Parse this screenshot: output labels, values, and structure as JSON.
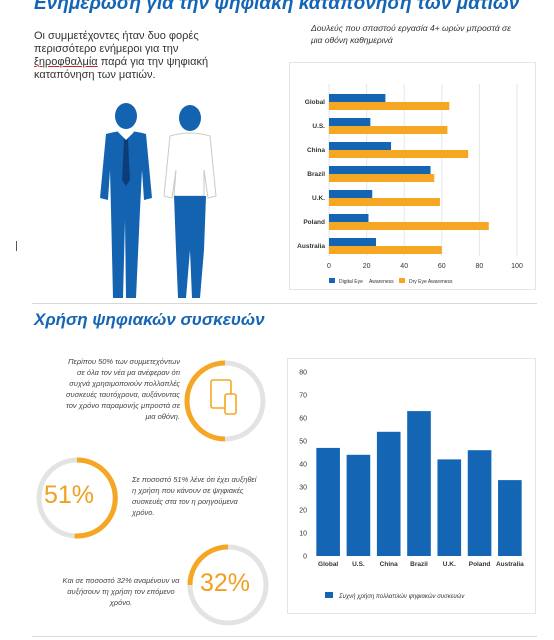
{
  "section1": {
    "title": "Ενημέρωση για την ψηφιακή καταπόνηση των ματιών",
    "intro_before": "Οι συμμετέχοντες ήταν δυο φορές περισσότερο ενήμεροι για την ",
    "intro_typo": "ξηροφθαλμία",
    "intro_after": " παρά για την ψηφιακή καταπόνηση των ματιών.",
    "chart_title": "Δουλεύς που σπαστού εργασία 4+ ωρών μπροστά σε μια οθόνη καθημερινά"
  },
  "section2": {
    "title": "Χρήση ψηφιακών συσκευών",
    "stat1_text": "Περίπου 50% των συμμετεχόντων σε όλα τον νέα μα ανέφεραν ότι συχνά χρησιμοποιούν πολλαπλές συσκευές ταυτόχρονα, αυξάνοντας τον χρόνο παραμονής μπροστά σε μια οθόνη.",
    "stat2_value": "51%",
    "stat2_text": "Σε ποσοστό 51% λένε ότι έχει αυξηθεί η χρήση που κάνουν σε ψηφιακές συσκευές στα τον η ροηγούμενα χρόνο.",
    "stat3_value": "32%",
    "stat3_text": "Και σε ποσοστό 32% αναμένουν να αυξήσουν τη χρήση τον επόμενο χρόνο."
  },
  "colors": {
    "blue": "#1565b5",
    "orange": "#f5a623",
    "ring_gray": "#e3e3e3"
  },
  "chart_data": [
    {
      "type": "bar",
      "orientation": "horizontal",
      "categories": [
        "Global",
        "U.S.",
        "China",
        "Brazil",
        "U.K.",
        "Poland",
        "Australia"
      ],
      "series": [
        {
          "name": "Digital Eye",
          "values": [
            30,
            22,
            33,
            54,
            23,
            21,
            25
          ]
        },
        {
          "name": "Dry Eye Awareness",
          "values": [
            64,
            63,
            74,
            56,
            59,
            85,
            60
          ]
        }
      ],
      "xlim": [
        0,
        100
      ],
      "ticks": [
        0,
        20,
        40,
        60,
        80,
        100
      ],
      "legend_extra": "Awareness",
      "grid": true,
      "legend": "bottom"
    },
    {
      "type": "bar",
      "categories": [
        "Global",
        "U.S.",
        "China",
        "Brazil",
        "U.K.",
        "Poland",
        "Australia"
      ],
      "series": [
        {
          "name": "Συχνή χρήση πολλαπλών ψηφιακών συσκευών",
          "values": [
            47,
            44,
            54,
            63,
            42,
            46,
            33
          ]
        }
      ],
      "ylim": [
        0,
        80
      ],
      "ticks": [
        0,
        10,
        20,
        30,
        40,
        50,
        60,
        70,
        80
      ],
      "tick_labels": [
        "0",
        "10",
        "20",
        "30",
        "40",
        "50",
        "60",
        "70",
        "80"
      ],
      "grid": false,
      "legend": "bottom"
    }
  ]
}
